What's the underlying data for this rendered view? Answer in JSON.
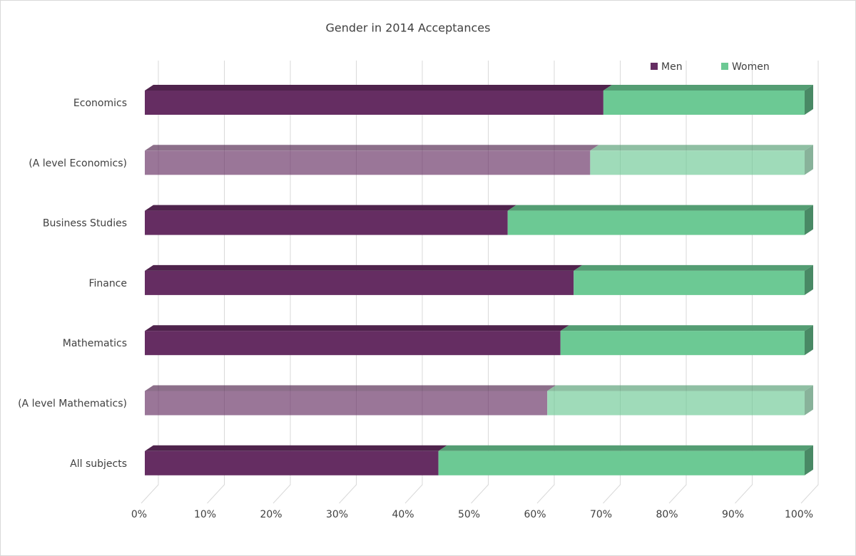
{
  "chart_data": {
    "type": "bar3d_stacked_horizontal",
    "title": "Gender in 2014 Acceptances",
    "categories": [
      "Economics",
      "(A level Economics)",
      "Business Studies",
      "Finance",
      "Mathematics",
      "(A level Mathematics)",
      "All subjects"
    ],
    "series": [
      {
        "name": "Men",
        "color": "#652d62",
        "values": [
          69.5,
          67.5,
          55,
          65,
          63,
          61,
          44.5
        ]
      },
      {
        "name": "Women",
        "color": "#6cc994",
        "values": [
          30.5,
          32.5,
          45,
          35,
          37,
          39,
          55.5
        ]
      }
    ],
    "faded": [
      1,
      5
    ],
    "xlim": [
      0,
      100
    ],
    "xticks": [
      {
        "value": 0,
        "label": "0%"
      },
      {
        "value": 10,
        "label": "10%"
      },
      {
        "value": 20,
        "label": "20%"
      },
      {
        "value": 30,
        "label": "30%"
      },
      {
        "value": 40,
        "label": "40%"
      },
      {
        "value": 50,
        "label": "50%"
      },
      {
        "value": 60,
        "label": "60%"
      },
      {
        "value": 70,
        "label": "70%"
      },
      {
        "value": 80,
        "label": "80%"
      },
      {
        "value": 90,
        "label": "90%"
      },
      {
        "value": 100,
        "label": "100%"
      }
    ],
    "grid": true,
    "legend": "top-right"
  }
}
